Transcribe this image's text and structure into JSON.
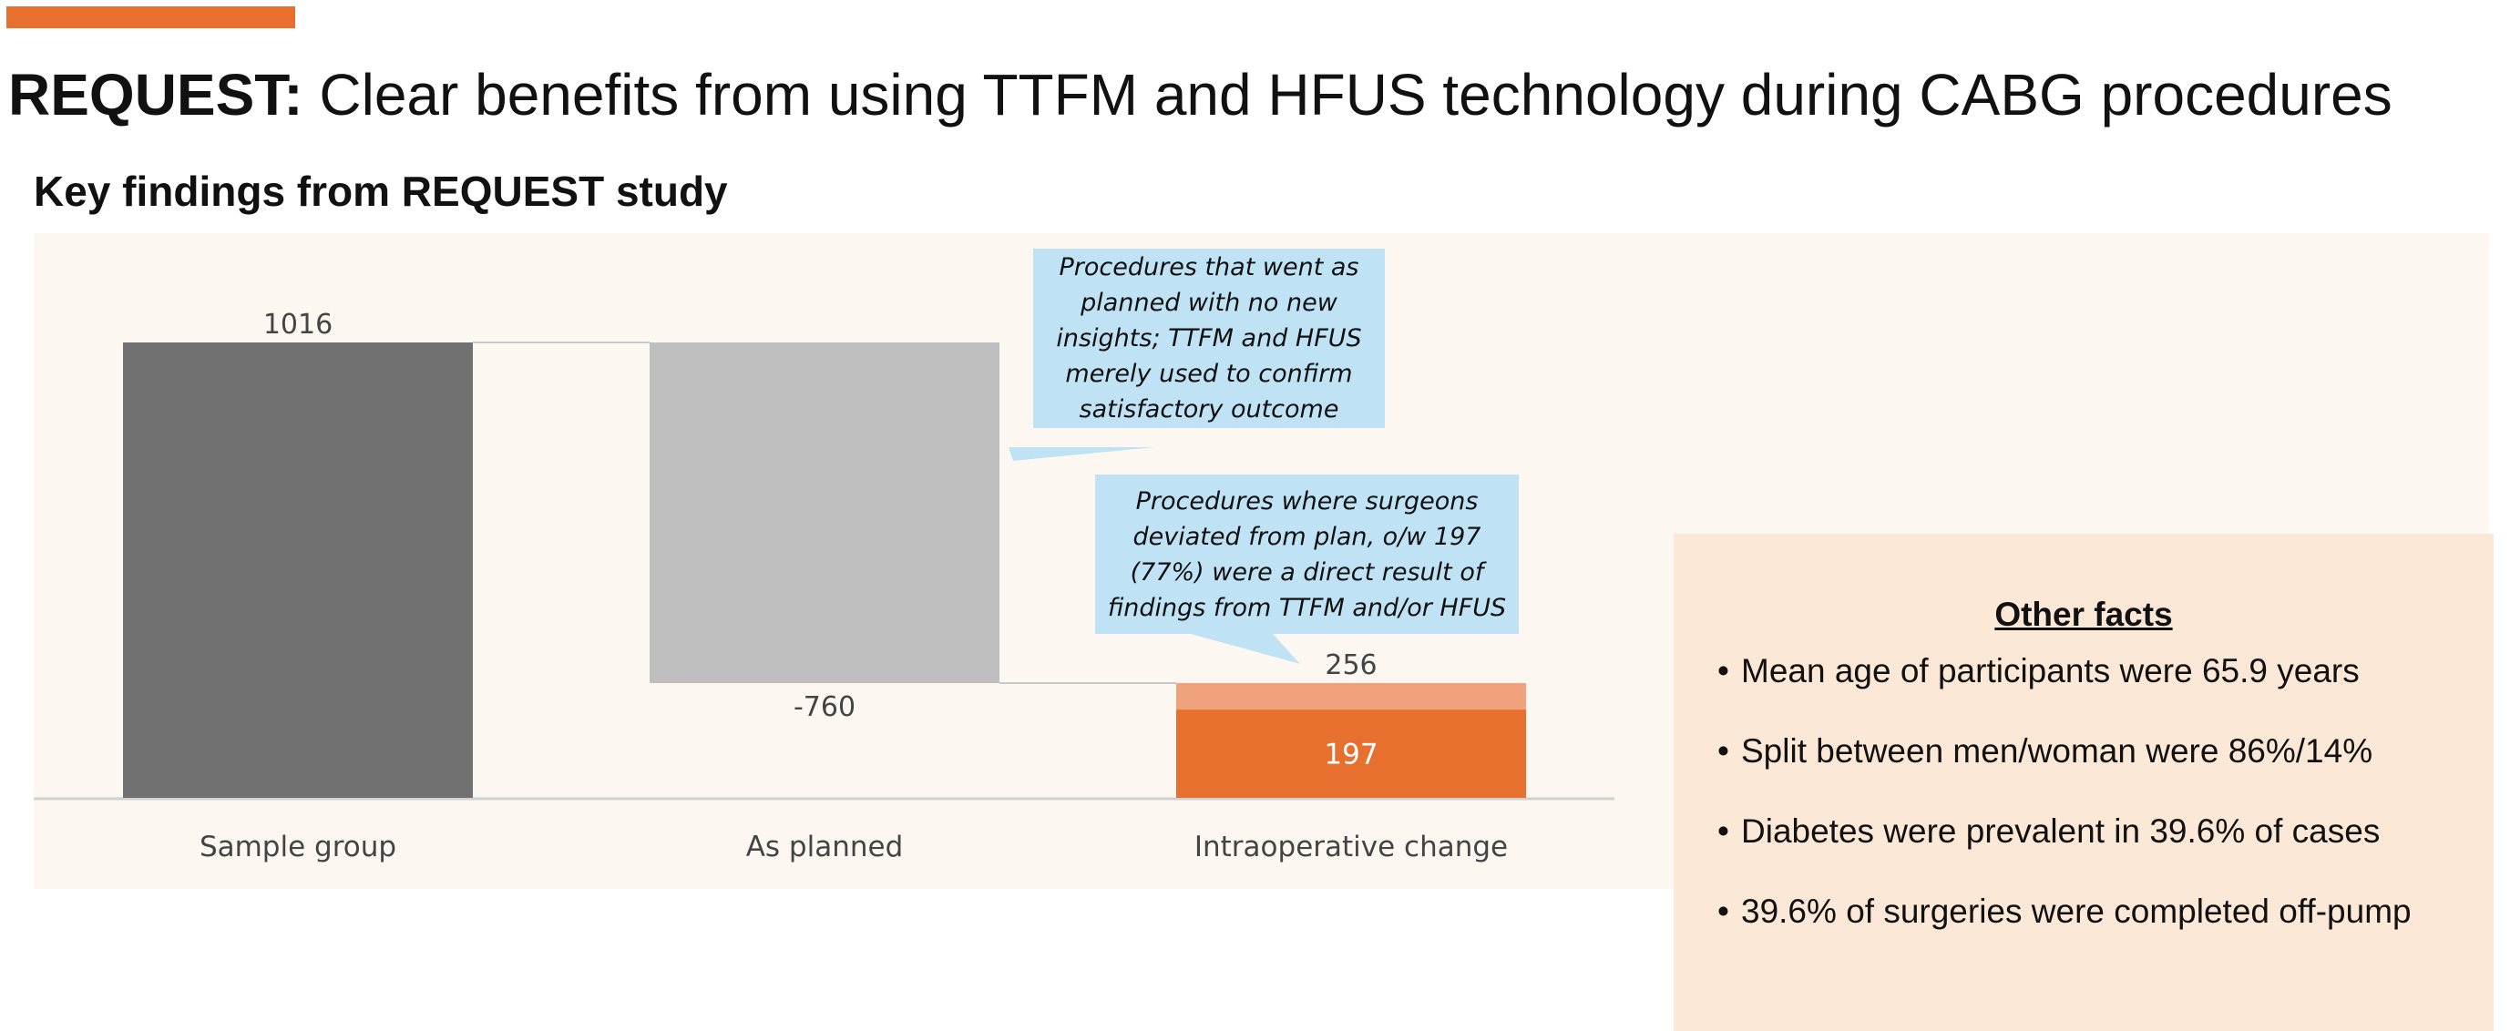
{
  "colors": {
    "accent": "#E8702F",
    "panel_bg": "#FDF7F1",
    "facts_bg": "#FCE8D6",
    "callout_bg": "#BFE3F5",
    "bar_sample": "#717171",
    "bar_planned": "#BEBEBE",
    "bar_change_light": "#F0A27C",
    "bar_change_dark": "#E8702F",
    "connector": "#C9C9C9",
    "axis": "#D0D0D0",
    "label_text": "#444444"
  },
  "header": {
    "title_bold": "REQUEST:",
    "title_rest": " Clear benefits from using TTFM and HFUS technology during CABG procedures",
    "subtitle": "Key findings from REQUEST study"
  },
  "chart_data": {
    "type": "bar",
    "categories": [
      "Sample group",
      "As planned",
      "Intraoperative change"
    ],
    "bars": [
      {
        "category": "Sample group",
        "start": 0,
        "end": 1016,
        "label": "1016"
      },
      {
        "category": "As planned",
        "start": 256,
        "end": 1016,
        "value": -760,
        "label": "-760"
      },
      {
        "category": "Intraoperative change",
        "start": 0,
        "end": 256,
        "label": "256",
        "segments": [
          {
            "value": 197,
            "label": "197"
          },
          {
            "value": 59
          }
        ]
      }
    ],
    "ylim": [
      0,
      1016
    ],
    "grid": false,
    "legend": "none"
  },
  "callouts": [
    {
      "text": "Procedures that went as planned with no new insights; TTFM and HFUS merely used to confirm satisfactory outcome"
    },
    {
      "text": "Procedures where surgeons deviated from plan, o/w 197 (77%) were a direct result of findings from TTFM and/or HFUS"
    }
  ],
  "facts": {
    "title": "Other facts",
    "items": [
      "Mean age of participants were 65.9 years",
      "Split between men/woman were 86%/14%",
      "Diabetes were prevalent in 39.6% of cases",
      "39.6% of surgeries were completed off-pump"
    ]
  }
}
